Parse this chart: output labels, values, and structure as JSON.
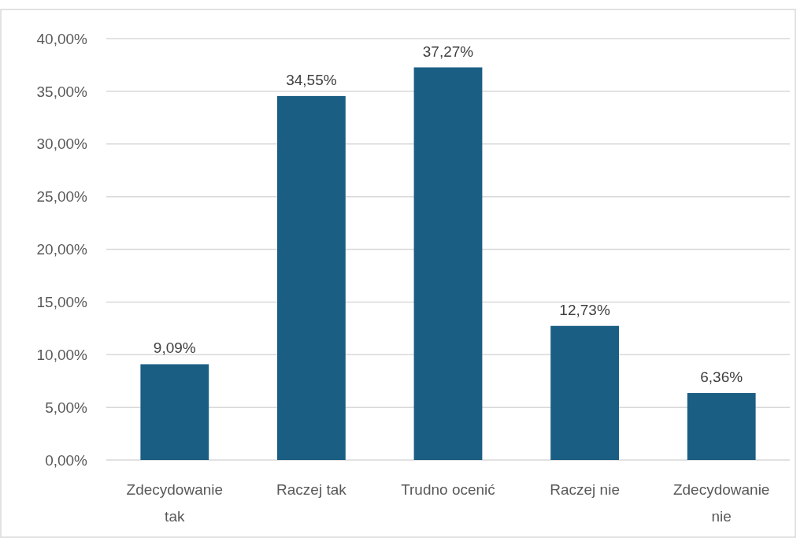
{
  "chart_data": {
    "type": "bar",
    "categories": [
      "Zdecydowanie tak",
      "Raczej tak",
      "Trudno ocenić",
      "Raczej nie",
      "Zdecydowanie nie"
    ],
    "values": [
      9.09,
      34.55,
      37.27,
      12.73,
      6.36
    ],
    "value_labels": [
      "9,09%",
      "34,55%",
      "37,27%",
      "12,73%",
      "6,36%"
    ],
    "color": "#1b5e84",
    "ylim": [
      0,
      40
    ],
    "yticks": [
      {
        "value": 0,
        "label": "0,00%"
      },
      {
        "value": 5,
        "label": "5,00%"
      },
      {
        "value": 10,
        "label": "10,00%"
      },
      {
        "value": 15,
        "label": "15,00%"
      },
      {
        "value": 20,
        "label": "20,00%"
      },
      {
        "value": 25,
        "label": "25,00%"
      },
      {
        "value": 30,
        "label": "30,00%"
      },
      {
        "value": 35,
        "label": "35,00%"
      },
      {
        "value": 40,
        "label": "40,00%"
      }
    ],
    "grid": "y"
  }
}
